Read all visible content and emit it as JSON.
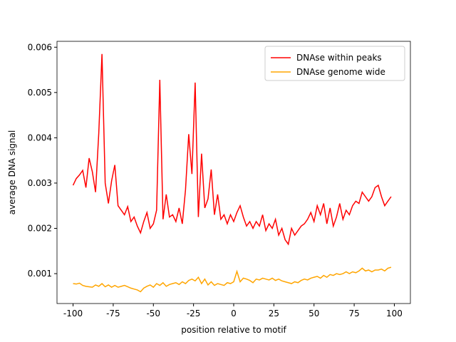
{
  "chart_data": {
    "type": "line",
    "xlabel": "position relative to motif",
    "ylabel": "average DNA signal",
    "x": [
      -100,
      -98,
      -96,
      -94,
      -92,
      -90,
      -88,
      -86,
      -84,
      -82,
      -80,
      -78,
      -76,
      -74,
      -72,
      -70,
      -68,
      -66,
      -64,
      -62,
      -60,
      -58,
      -56,
      -54,
      -52,
      -50,
      -48,
      -46,
      -44,
      -42,
      -40,
      -38,
      -36,
      -34,
      -32,
      -30,
      -28,
      -26,
      -24,
      -22,
      -20,
      -18,
      -16,
      -14,
      -12,
      -10,
      -8,
      -6,
      -4,
      -2,
      0,
      2,
      4,
      6,
      8,
      10,
      12,
      14,
      16,
      18,
      20,
      22,
      24,
      26,
      28,
      30,
      32,
      34,
      36,
      38,
      40,
      42,
      44,
      46,
      48,
      50,
      52,
      54,
      56,
      58,
      60,
      62,
      64,
      66,
      68,
      70,
      72,
      74,
      76,
      78,
      80,
      82,
      84,
      86,
      88,
      90,
      92,
      94,
      96,
      98
    ],
    "series": [
      {
        "name": "DNAse within peaks",
        "color": "#ff0000",
        "values": [
          0.00295,
          0.0031,
          0.00318,
          0.00328,
          0.0029,
          0.00355,
          0.00325,
          0.0028,
          0.0041,
          0.00585,
          0.003,
          0.00255,
          0.00305,
          0.0034,
          0.0025,
          0.0024,
          0.0023,
          0.00248,
          0.00215,
          0.00225,
          0.00205,
          0.0019,
          0.00215,
          0.00235,
          0.002,
          0.0021,
          0.0024,
          0.00528,
          0.0022,
          0.00275,
          0.00225,
          0.0023,
          0.00215,
          0.00245,
          0.0021,
          0.00285,
          0.00408,
          0.0032,
          0.00522,
          0.00225,
          0.00365,
          0.00245,
          0.00265,
          0.0033,
          0.0023,
          0.00275,
          0.0022,
          0.0023,
          0.0021,
          0.0023,
          0.00215,
          0.00235,
          0.0025,
          0.00225,
          0.00205,
          0.00215,
          0.002,
          0.00215,
          0.00205,
          0.0023,
          0.00195,
          0.0021,
          0.002,
          0.0022,
          0.00185,
          0.002,
          0.00175,
          0.00165,
          0.002,
          0.00185,
          0.00195,
          0.00205,
          0.0021,
          0.0022,
          0.00235,
          0.00215,
          0.0025,
          0.0023,
          0.00255,
          0.0021,
          0.00245,
          0.00205,
          0.00225,
          0.00255,
          0.0022,
          0.0024,
          0.0023,
          0.0025,
          0.0026,
          0.00255,
          0.0028,
          0.0027,
          0.0026,
          0.0027,
          0.0029,
          0.00295,
          0.0027,
          0.0025,
          0.0026,
          0.0027
        ]
      },
      {
        "name": "DNAse genome wide",
        "color": "#ffa500",
        "values": [
          0.00078,
          0.00077,
          0.00079,
          0.00074,
          0.00072,
          0.00071,
          0.0007,
          0.00075,
          0.00072,
          0.00078,
          0.00071,
          0.00075,
          0.0007,
          0.00074,
          0.0007,
          0.00072,
          0.00074,
          0.00071,
          0.00068,
          0.00066,
          0.00064,
          0.0006,
          0.00068,
          0.00072,
          0.00075,
          0.0007,
          0.00078,
          0.00074,
          0.0008,
          0.00072,
          0.00076,
          0.00078,
          0.0008,
          0.00076,
          0.00082,
          0.00078,
          0.00085,
          0.00088,
          0.00084,
          0.00092,
          0.00078,
          0.00088,
          0.00075,
          0.00082,
          0.00074,
          0.00078,
          0.00076,
          0.00074,
          0.0008,
          0.00078,
          0.00082,
          0.00105,
          0.00082,
          0.0009,
          0.00088,
          0.00085,
          0.0008,
          0.00088,
          0.00086,
          0.0009,
          0.00088,
          0.00086,
          0.0009,
          0.00085,
          0.00088,
          0.00084,
          0.00082,
          0.0008,
          0.00078,
          0.00082,
          0.0008,
          0.00085,
          0.00088,
          0.00086,
          0.0009,
          0.00092,
          0.00094,
          0.0009,
          0.00096,
          0.00092,
          0.00098,
          0.00096,
          0.001,
          0.00098,
          0.001,
          0.00104,
          0.001,
          0.00104,
          0.00102,
          0.00106,
          0.00112,
          0.00106,
          0.00108,
          0.00104,
          0.00108,
          0.00108,
          0.0011,
          0.00106,
          0.00112,
          0.00114
        ]
      }
    ],
    "xlim": [
      -110,
      110
    ],
    "ylim": [
      0.00034,
      0.00613
    ],
    "xticks": [
      -100,
      -75,
      -50,
      -25,
      0,
      25,
      50,
      75,
      100
    ],
    "yticks": [
      0.001,
      0.002,
      0.003,
      0.004,
      0.005,
      0.006
    ],
    "legend": "upper right",
    "grid": false
  }
}
